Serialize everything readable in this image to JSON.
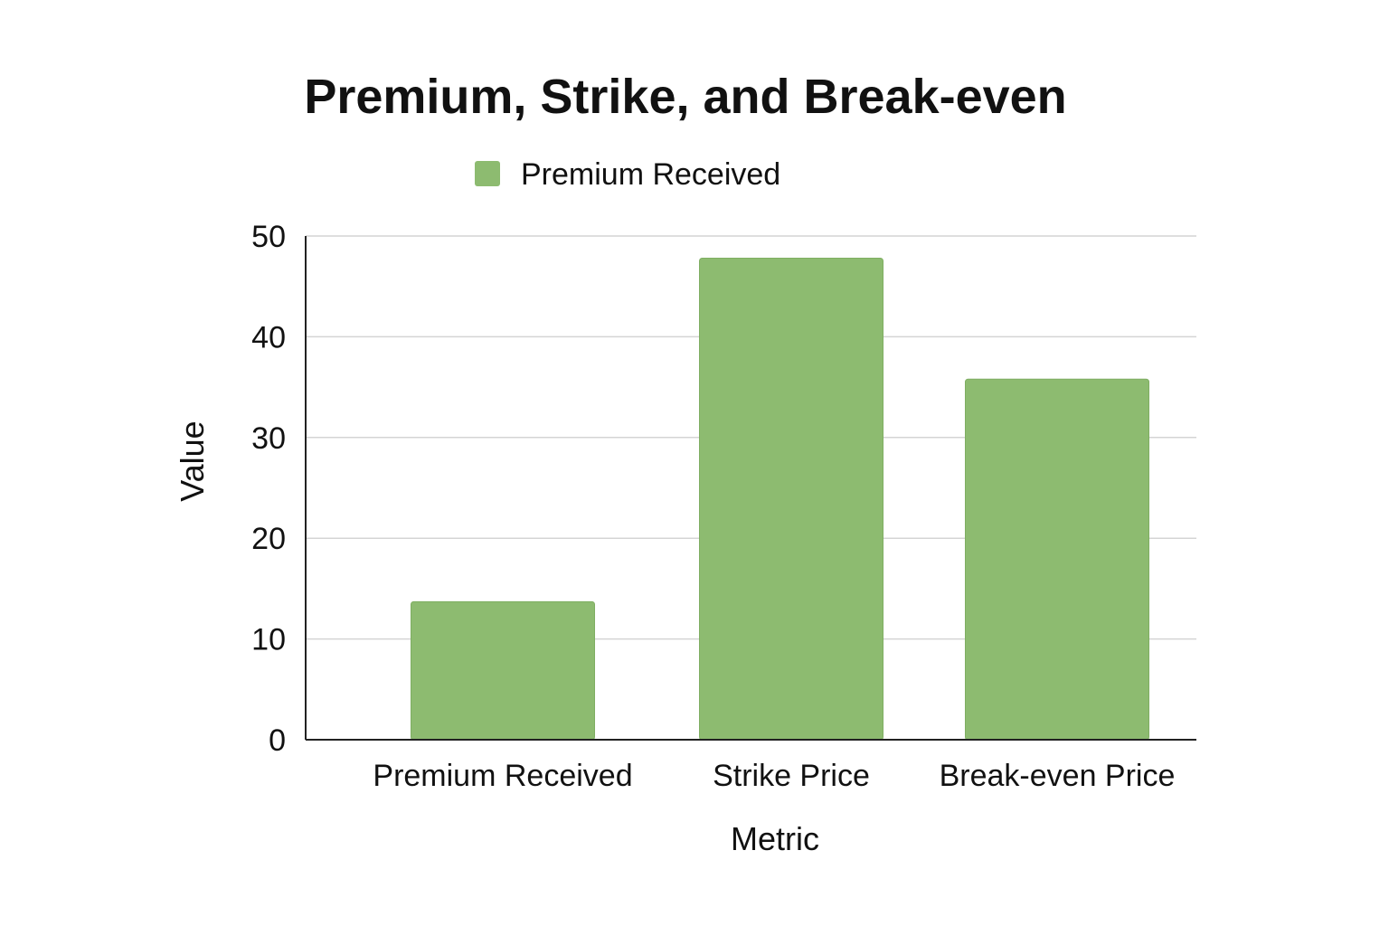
{
  "chart_data": {
    "type": "bar",
    "title": "Premium, Strike, and Break-even",
    "xlabel": "Metric",
    "ylabel": "Value",
    "categories": [
      "Premium Received",
      "Strike Price",
      "Break-even Price"
    ],
    "series": [
      {
        "name": "Premium Received",
        "values": [
          13.7,
          47.8,
          35.8
        ]
      }
    ],
    "ylim": [
      0,
      50
    ],
    "yticks": [
      0,
      10,
      20,
      30,
      40,
      50
    ],
    "grid": true,
    "legend": "top",
    "colors": {
      "bar": "#8dbb70",
      "bar_edge": "#7fae62"
    }
  }
}
